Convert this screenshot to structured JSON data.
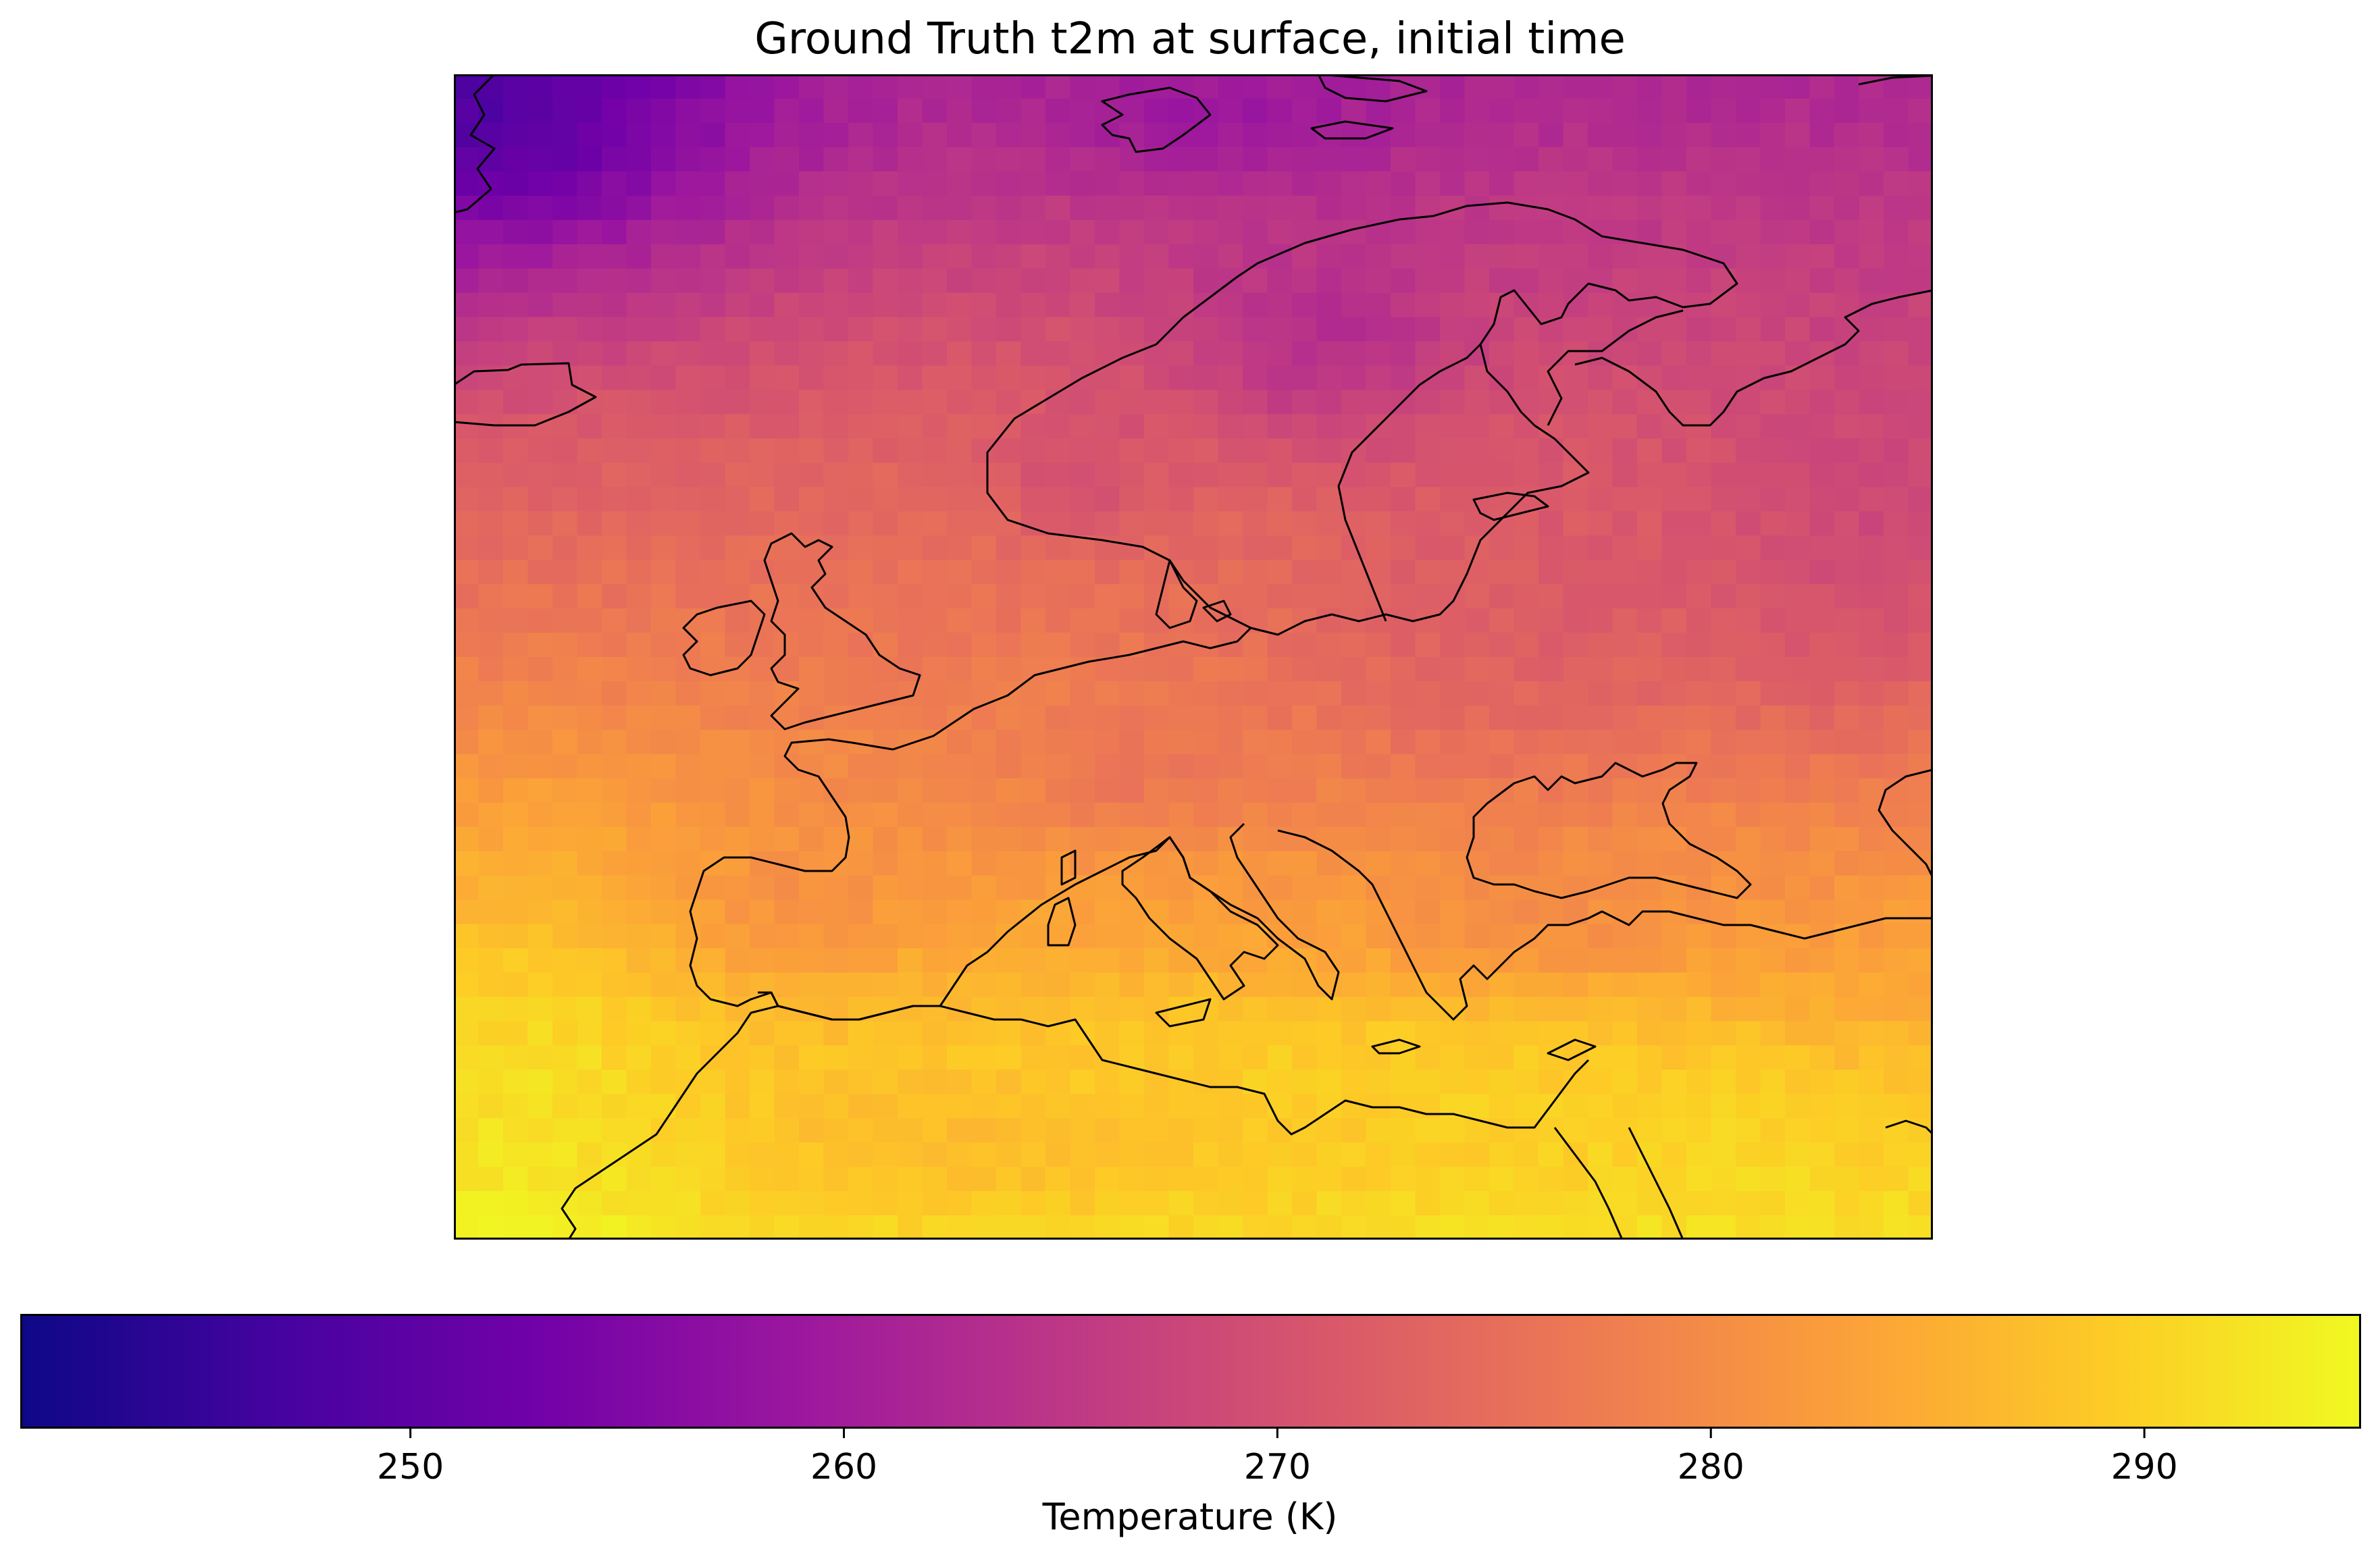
{
  "figure": {
    "title": "Ground Truth t2m at surface, initial time"
  },
  "colorbar": {
    "label": "Temperature (K)",
    "colormap": "plasma",
    "vmin": 241,
    "vmax": 295,
    "ticks": [
      "250",
      "260",
      "270",
      "280",
      "290"
    ],
    "tick_values": [
      250,
      260,
      270,
      280,
      290
    ],
    "colors": [
      "#0d0887",
      "#46039f",
      "#7201a8",
      "#9c179e",
      "#bd3786",
      "#d8576b",
      "#ed7953",
      "#fb9f3a",
      "#fdca26",
      "#f0f921"
    ]
  },
  "map": {
    "region": "Europe",
    "coastline_color": "#000000",
    "grid_cols": 60,
    "grid_rows": 48
  }
}
